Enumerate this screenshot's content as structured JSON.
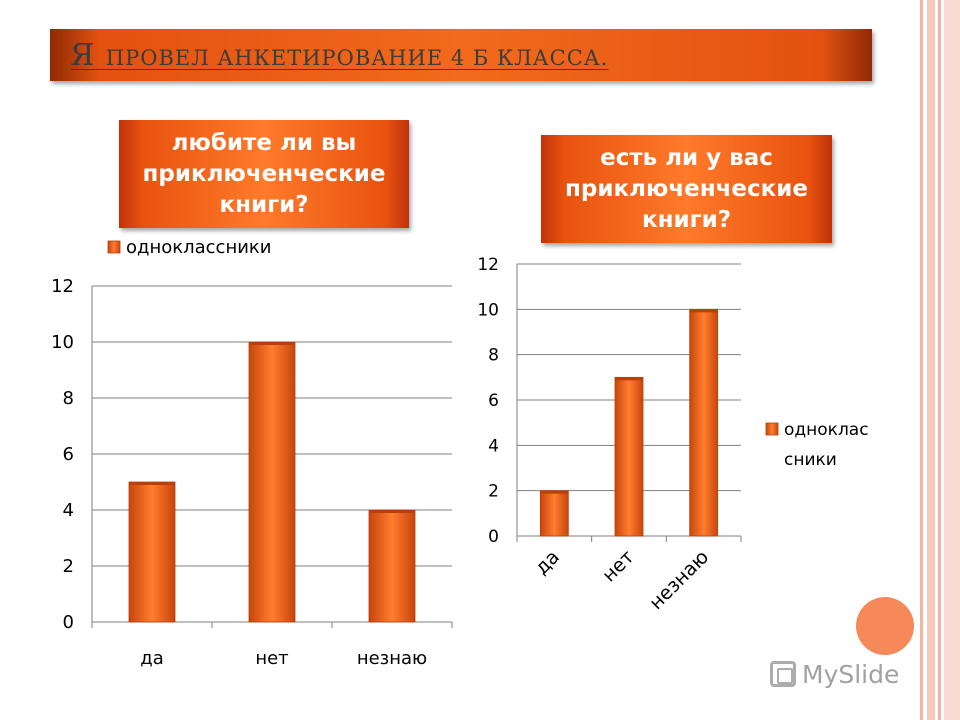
{
  "slide": {
    "title_first": "Я",
    "title_rest": "ПРОВЕЛ АНКЕТИРОВАНИЕ 4 Б КЛАССА.",
    "question1": "любите ли вы приключенческие книги?",
    "question2": "есть ли у вас приключенческие книги?",
    "logo_text": "MySlide"
  },
  "colors": {
    "bar": "#f26a1c",
    "bar_dark": "#b8400a",
    "accent": "#e8530f",
    "circle": "#f5895a"
  },
  "chart_data": [
    {
      "type": "bar",
      "title": "любите ли вы приключенческие книги?",
      "categories": [
        "да",
        "нет",
        "незнаю"
      ],
      "series": [
        {
          "name": "одноклассники",
          "values": [
            5,
            10,
            4
          ]
        }
      ],
      "ylim": [
        0,
        12
      ],
      "yticks": [
        "0",
        "2",
        "4",
        "6",
        "8",
        "10",
        "12"
      ],
      "legend": "top",
      "grid": true
    },
    {
      "type": "bar",
      "title": "есть ли у вас приключенческие книги?",
      "categories": [
        "да",
        "нет",
        "незнаю"
      ],
      "series": [
        {
          "name": "одноклассники",
          "values": [
            2,
            7,
            10
          ]
        }
      ],
      "legend_lines": [
        "одноклас",
        "сники"
      ],
      "ylim": [
        0,
        12
      ],
      "yticks": [
        "0",
        "2",
        "4",
        "6",
        "8",
        "10",
        "12"
      ],
      "legend": "right",
      "grid": true
    }
  ]
}
